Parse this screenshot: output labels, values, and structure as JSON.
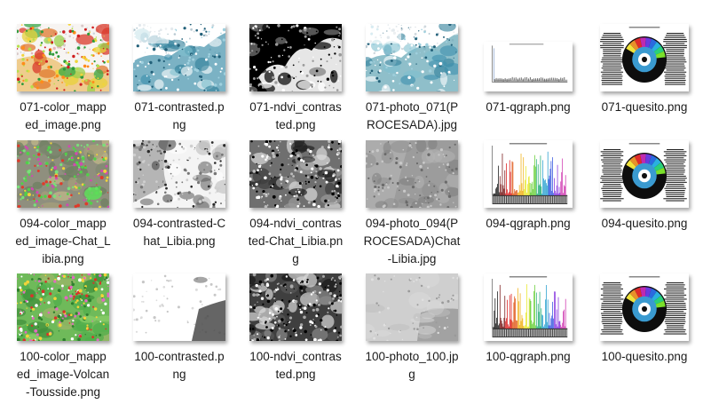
{
  "files": [
    {
      "name": "071-color_mapped_image.png",
      "lines": [
        "071-color_mapp",
        "ed_image.png"
      ],
      "thumb": "color-map-light"
    },
    {
      "name": "071-contrasted.png",
      "lines": [
        "071-contrasted.p",
        "ng"
      ],
      "thumb": "contrasted-blue"
    },
    {
      "name": "071-ndvi_contrasted.png",
      "lines": [
        "071-ndvi_contras",
        "ted.png"
      ],
      "thumb": "ndvi-bw"
    },
    {
      "name": "071-photo_071(PROCESADA).jpg",
      "lines": [
        "071-photo_071(P",
        "ROCESADA).jpg"
      ],
      "thumb": "photo-blue"
    },
    {
      "name": "071-qgraph.png",
      "lines": [
        "071-qgraph.png"
      ],
      "thumb": "qgraph-flat"
    },
    {
      "name": "071-quesito.png",
      "lines": [
        "071-quesito.png"
      ],
      "thumb": "quesito"
    },
    {
      "name": "094-color_mapped_image-Chat_Libia.png",
      "lines": [
        "094-color_mapp",
        "ed_image-Chat_L",
        "ibia.png"
      ],
      "thumb": "color-map-green"
    },
    {
      "name": "094-contrasted-Chat_Libia.png",
      "lines": [
        "094-contrasted-C",
        "hat_Libia.png"
      ],
      "thumb": "contrasted-gray"
    },
    {
      "name": "094-ndvi_contrasted-Chat_Libia.png",
      "lines": [
        "094-ndvi_contras",
        "ted-Chat_Libia.pn",
        "g"
      ],
      "thumb": "ndvi-gray"
    },
    {
      "name": "094-photo_094(PROCESADA)Chat-Libia.jpg",
      "lines": [
        "094-photo_094(P",
        "ROCESADA)Chat",
        "-Libia.jpg"
      ],
      "thumb": "photo-gray"
    },
    {
      "name": "094-qgraph.png",
      "lines": [
        "094-qgraph.png"
      ],
      "thumb": "qgraph-rainbow"
    },
    {
      "name": "094-quesito.png",
      "lines": [
        "094-quesito.png"
      ],
      "thumb": "quesito"
    },
    {
      "name": "100-color_mapped_image-Volcan-Tousside.png",
      "lines": [
        "100-color_mapp",
        "ed_image-Volcan",
        "-Tousside.png"
      ],
      "thumb": "color-map-green2"
    },
    {
      "name": "100-contrasted.png",
      "lines": [
        "100-contrasted.p",
        "ng"
      ],
      "thumb": "contrasted-white"
    },
    {
      "name": "100-ndvi_contrasted.png",
      "lines": [
        "100-ndvi_contras",
        "ted.png"
      ],
      "thumb": "ndvi-dark"
    },
    {
      "name": "100-photo_100.jpg",
      "lines": [
        "100-photo_100.jp",
        "g"
      ],
      "thumb": "photo-light"
    },
    {
      "name": "100-qgraph.png",
      "lines": [
        "100-qgraph.png"
      ],
      "thumb": "qgraph-rainbow"
    },
    {
      "name": "100-quesito.png",
      "lines": [
        "100-quesito.png"
      ],
      "thumb": "quesito"
    }
  ],
  "colors": {
    "text": "#1b1b1b",
    "background": "#ffffff"
  }
}
